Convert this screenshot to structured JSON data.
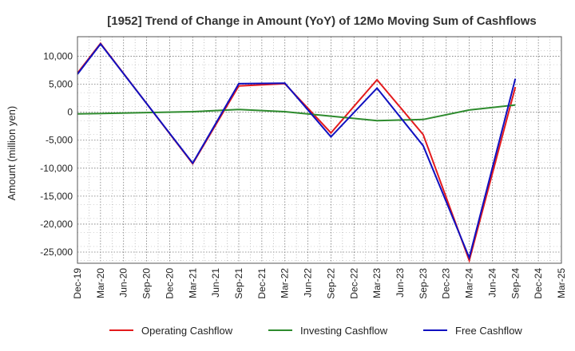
{
  "chart_data": {
    "type": "line",
    "title": "[1952]  Trend of Change in Amount (YoY) of 12Mo Moving Sum of Cashflows",
    "ylabel": "Amount (million yen)",
    "xlabel": "",
    "categories": [
      "Dec-19",
      "Mar-20",
      "Jun-20",
      "Sep-20",
      "Dec-20",
      "Mar-21",
      "Jun-21",
      "Sep-21",
      "Dec-21",
      "Mar-22",
      "Jun-22",
      "Sep-22",
      "Dec-22",
      "Mar-23",
      "Jun-23",
      "Sep-23",
      "Dec-23",
      "Mar-24",
      "Jun-24",
      "Sep-24",
      "Dec-24",
      "Mar-25"
    ],
    "ylim": [
      -27000,
      13500
    ],
    "yticks": [
      10000,
      5000,
      0,
      -5000,
      -10000,
      -15000,
      -20000,
      -25000
    ],
    "ytick_labels": [
      "10,000",
      "5,000",
      "0",
      "-5,000",
      "-10,000",
      "-15,000",
      "-20,000",
      "-25,000"
    ],
    "grid": true,
    "legend_position": "bottom",
    "series": [
      {
        "name": "Operating Cashflow",
        "color": "#e31a1c",
        "values": [
          7000,
          12300,
          null,
          null,
          null,
          -9200,
          null,
          4700,
          null,
          5100,
          null,
          -3700,
          null,
          5800,
          null,
          -4000,
          null,
          -26500,
          null,
          4500,
          null,
          null
        ]
      },
      {
        "name": "Investing Cashflow",
        "color": "#2e8b2e",
        "values": [
          -300,
          null,
          null,
          null,
          null,
          100,
          null,
          500,
          null,
          100,
          null,
          -700,
          null,
          -1500,
          null,
          -1300,
          null,
          400,
          null,
          1300,
          null,
          null
        ]
      },
      {
        "name": "Free Cashflow",
        "color": "#1010c0",
        "values": [
          6800,
          12200,
          null,
          null,
          null,
          -9100,
          null,
          5100,
          null,
          5200,
          null,
          -4400,
          null,
          4300,
          null,
          -6000,
          null,
          -26000,
          null,
          6000,
          null,
          null
        ]
      }
    ]
  }
}
